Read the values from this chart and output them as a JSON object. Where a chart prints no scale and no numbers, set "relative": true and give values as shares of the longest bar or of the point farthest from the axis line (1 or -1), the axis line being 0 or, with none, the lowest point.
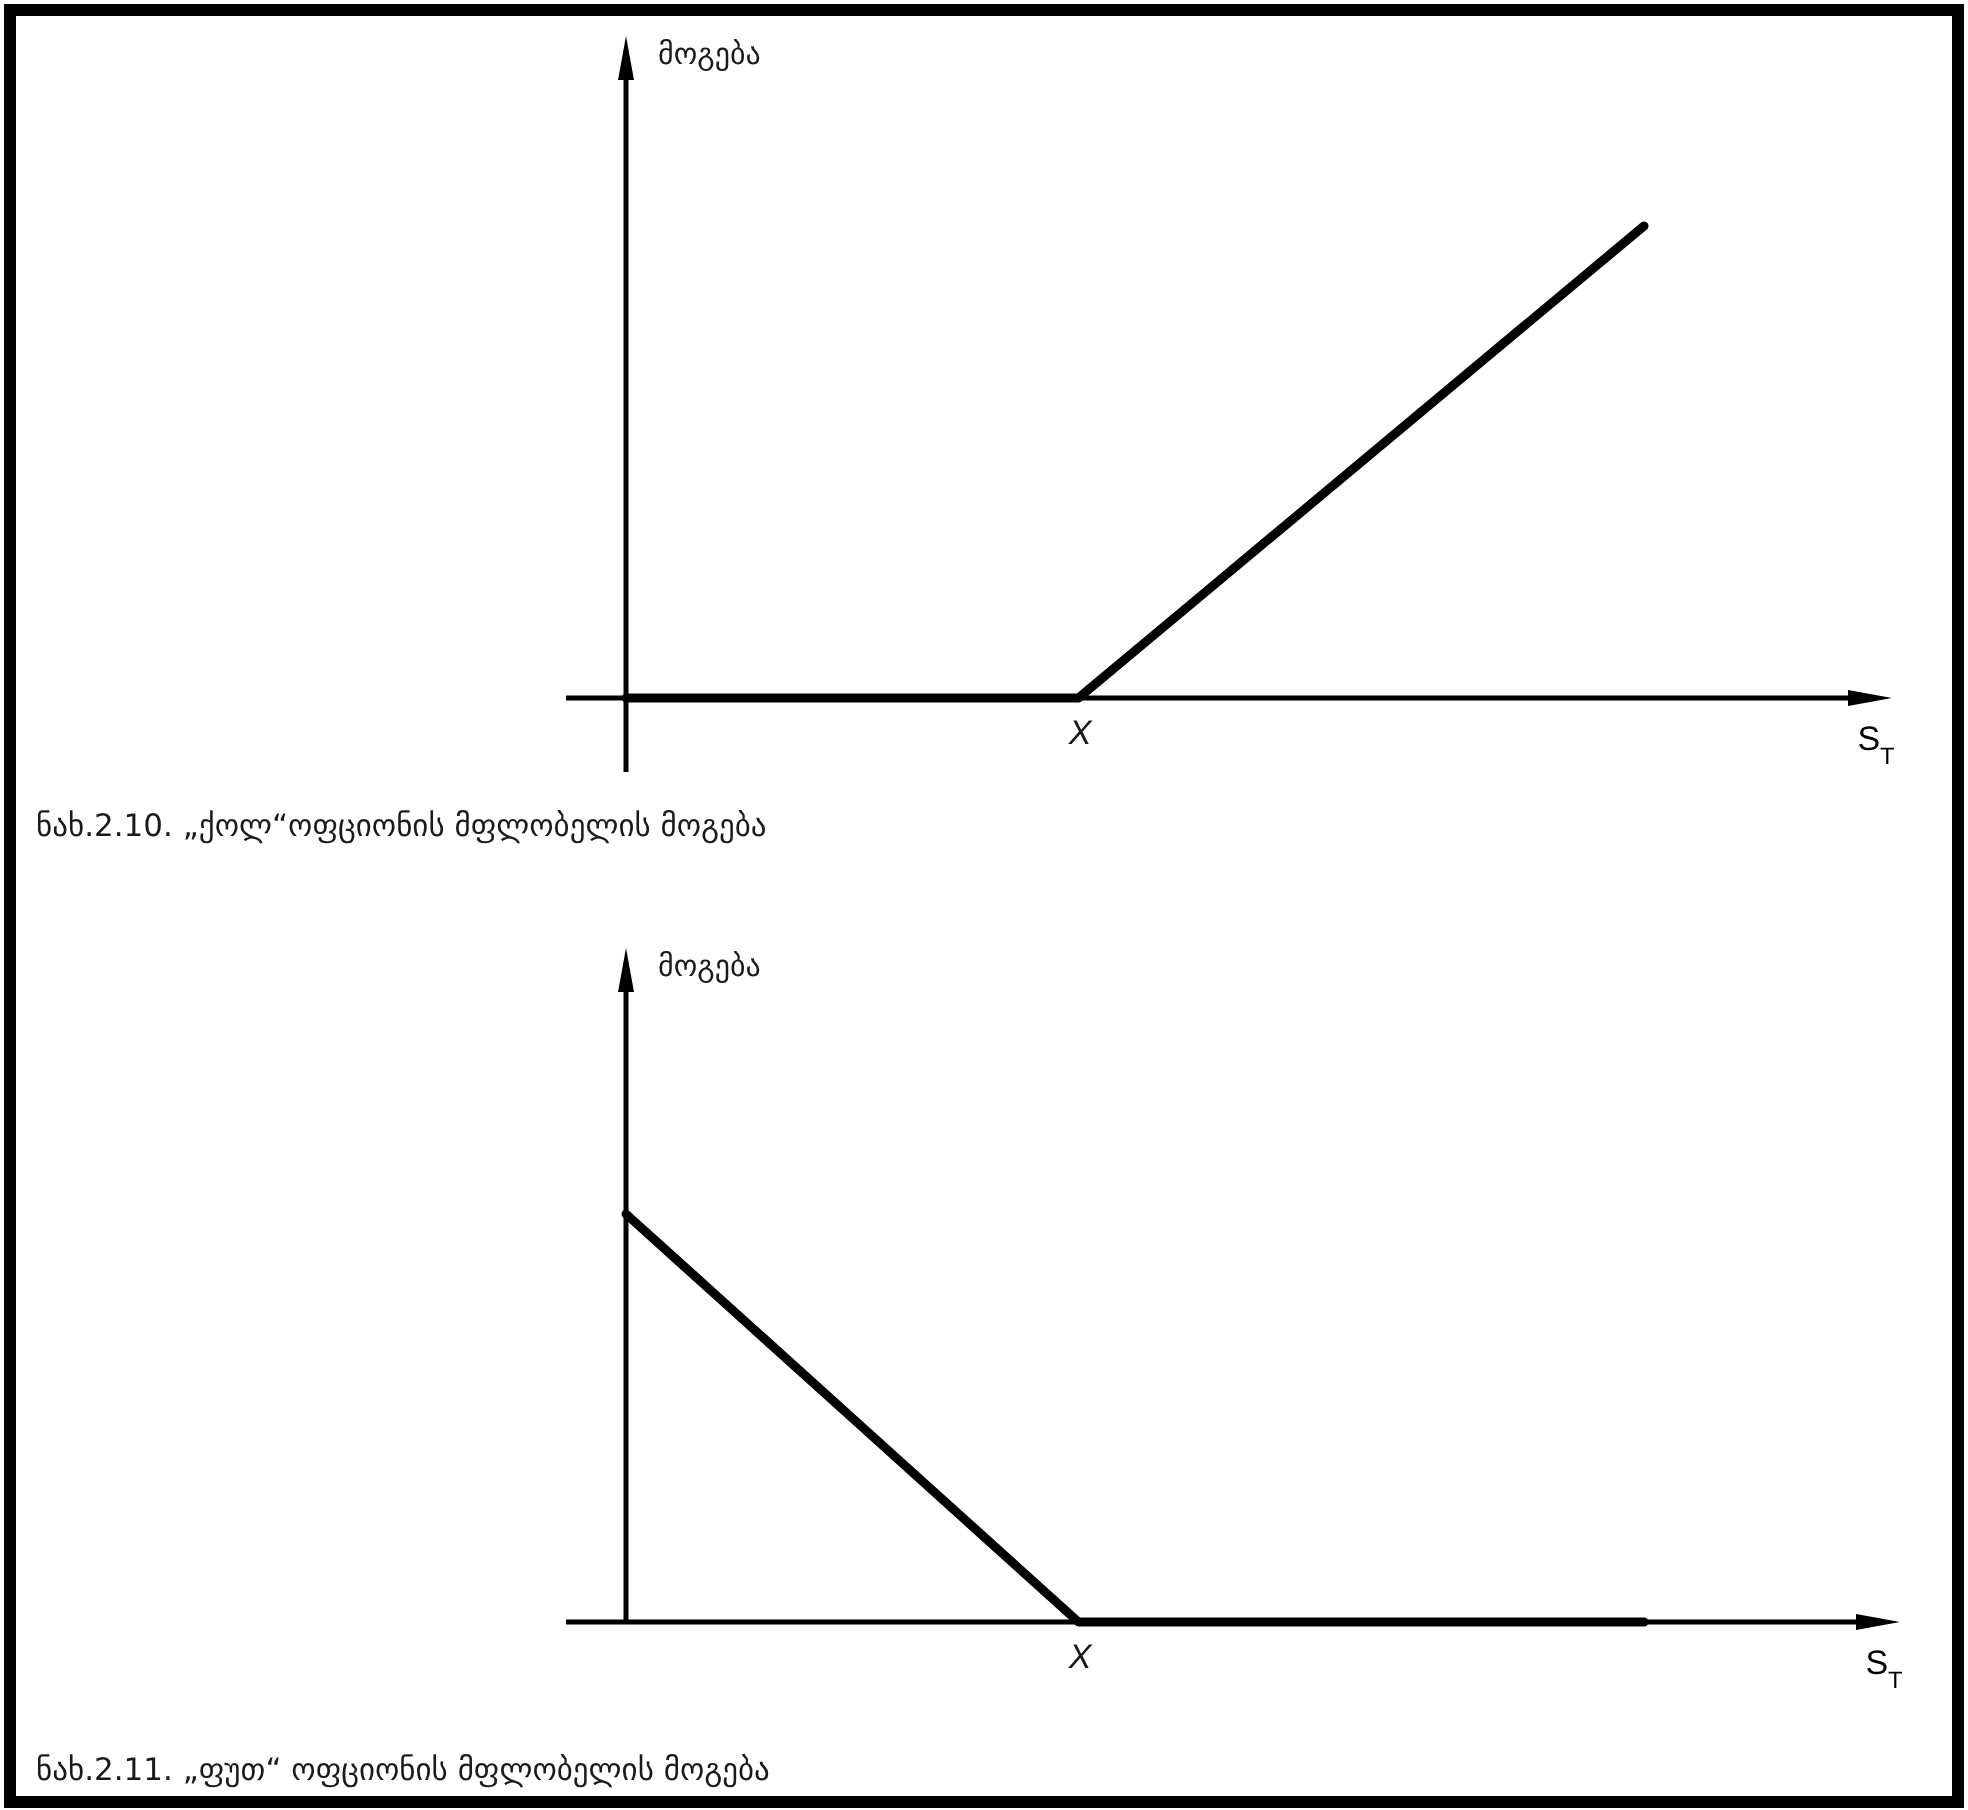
{
  "chart_data": [
    {
      "type": "line",
      "relative": true,
      "categories": [
        null,
        null,
        null,
        null,
        null,
        null,
        null,
        null,
        null,
        null
      ],
      "series": [
        {
          "color": "#000000",
          "values": [
            0,
            0,
            0,
            0,
            0,
            0.2,
            0.4,
            0.6,
            0.8,
            1
          ]
        }
      ],
      "ylabel": "მოგება",
      "xlabel": "S$_{T}$",
      "line_style": "solid",
      "annotations": [
        "X",
        "ნახ.2.10. „ქოლ“ოფციონის მფლობელის მოგება"
      ]
    },
    {
      "type": "line",
      "relative": true,
      "categories": [
        null,
        null,
        null,
        null,
        null,
        null,
        null,
        null,
        null,
        null
      ],
      "series": [
        {
          "color": "#000000",
          "values": [
            1,
            0.75,
            0.5,
            0.25,
            0,
            0,
            0,
            0,
            0,
            0
          ]
        }
      ],
      "ylabel": "მოგება",
      "xlabel": "S$_{T}$",
      "line_style": "solid",
      "annotations": [
        "X",
        "ნახ.2.11. „ფუთ“ ოფციონის მფლობელის მოგება"
      ]
    }
  ]
}
